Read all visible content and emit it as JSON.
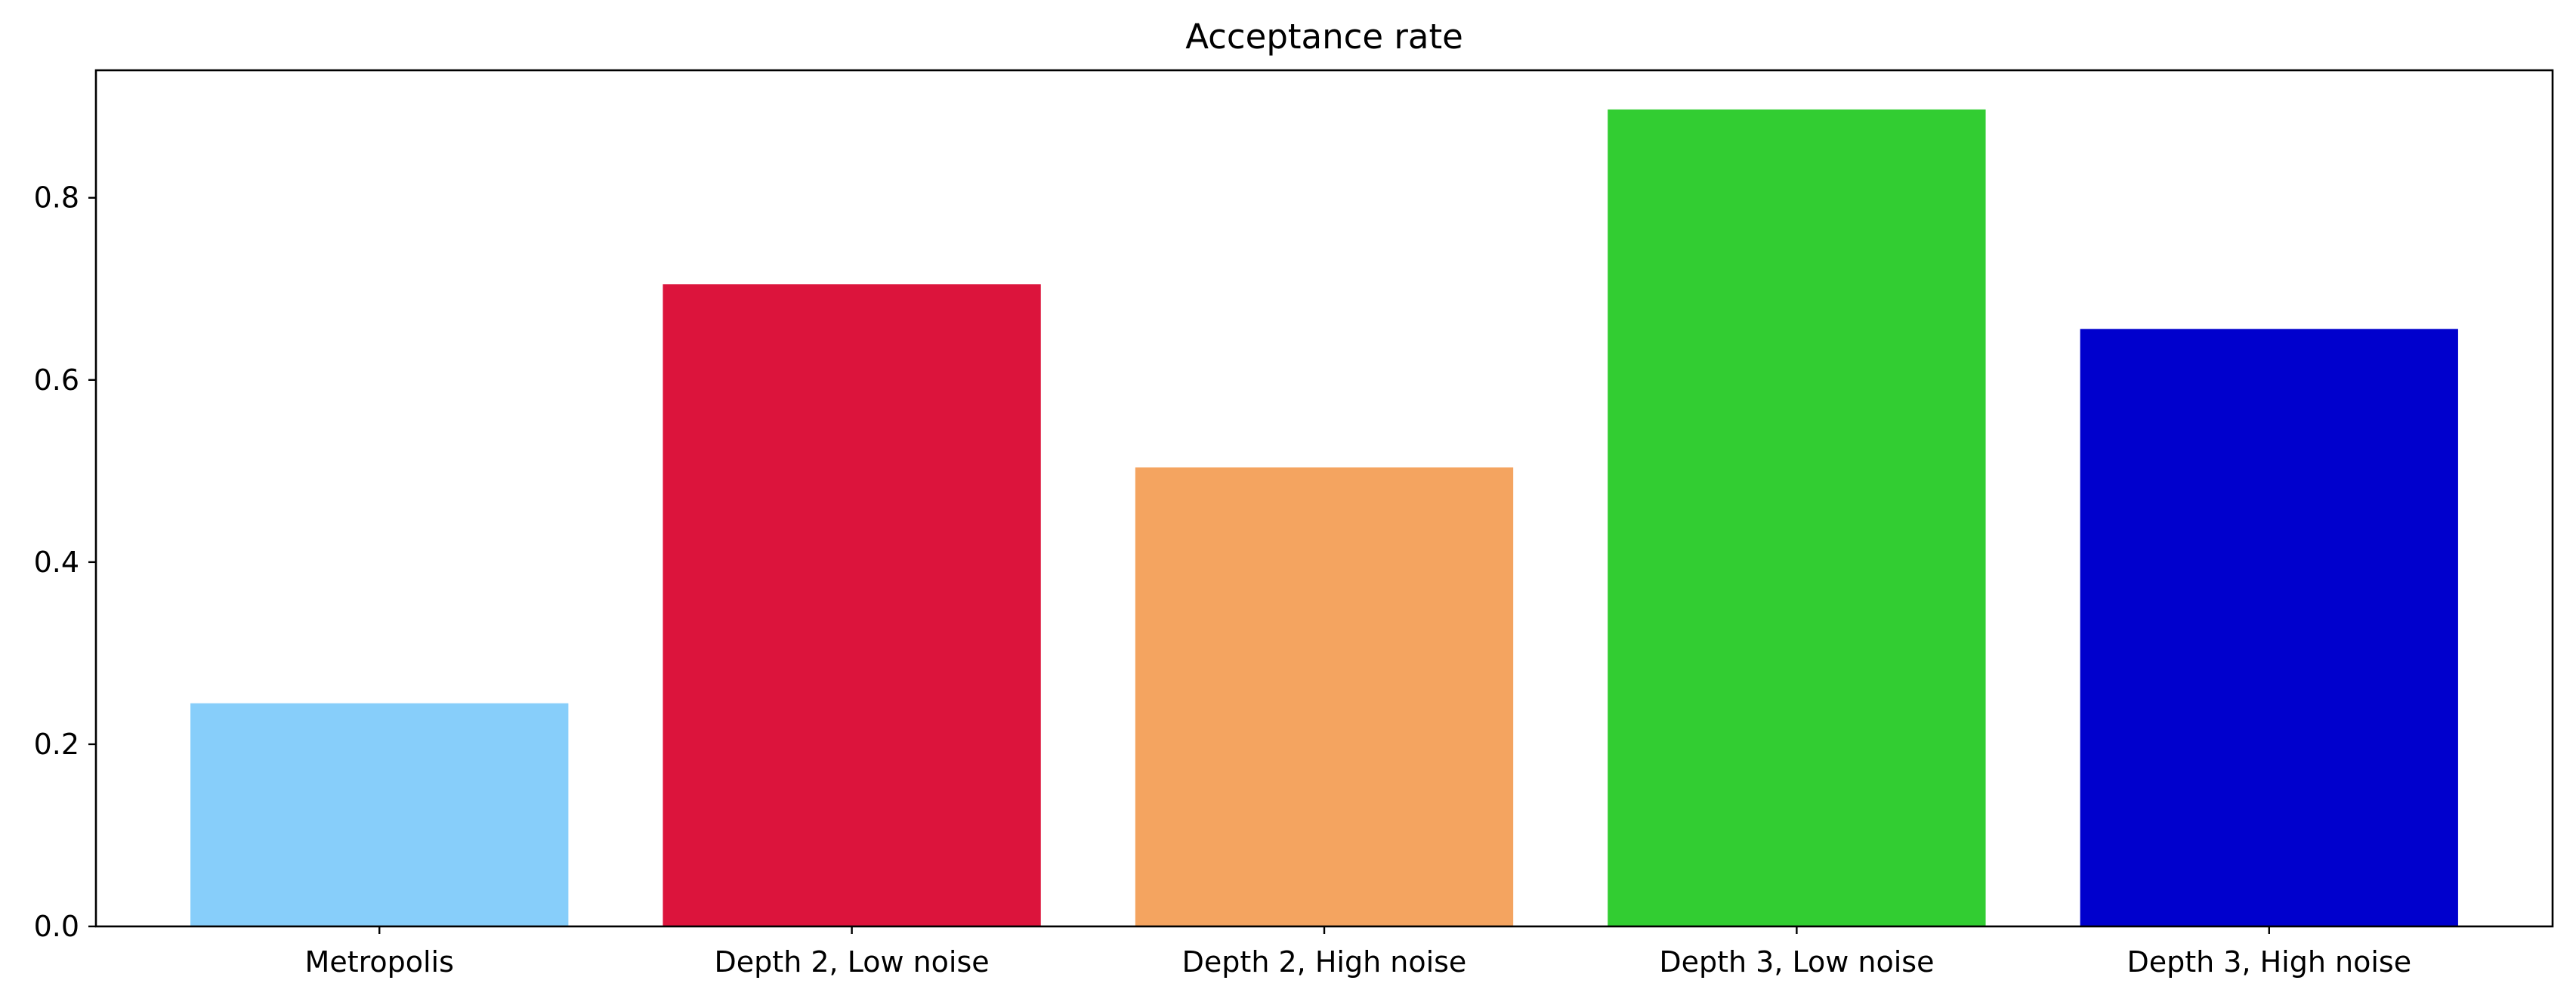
{
  "chart_data": {
    "type": "bar",
    "title": "Acceptance rate",
    "xlabel": "",
    "ylabel": "",
    "categories": [
      "Metropolis",
      "Depth 2, Low noise",
      "Depth 2, High noise",
      "Depth 3, Low noise",
      "Depth 3, High noise"
    ],
    "values": [
      0.245,
      0.705,
      0.504,
      0.897,
      0.656
    ],
    "colors": [
      "#87CEFA",
      "#DC143C",
      "#F4A460",
      "#32CD32",
      "#0000CD"
    ],
    "ylim": [
      0,
      0.94
    ],
    "yticks": [
      0.0,
      0.2,
      0.4,
      0.6,
      0.8
    ],
    "ytick_labels": [
      "0.0",
      "0.2",
      "0.4",
      "0.6",
      "0.8"
    ],
    "grid": false,
    "legend": "none"
  }
}
